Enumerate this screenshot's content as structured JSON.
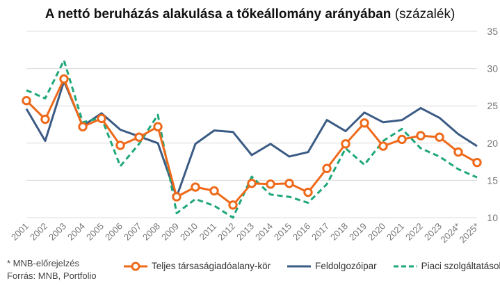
{
  "title": {
    "main": "A nettó beruházás alakulása a tőkeállomány arányában",
    "unit": "(százalék)"
  },
  "footnotes": {
    "forecast_note": "* MNB-előrejelzés",
    "source": "Forrás: MNB, Portfolio"
  },
  "chart_data": {
    "type": "line",
    "title": "A nettó beruházás alakulása a tőkeállomány arányában (százalék)",
    "categories": [
      "2001",
      "2002",
      "2003",
      "2004",
      "2005",
      "2006",
      "2007",
      "2008",
      "2009",
      "2010",
      "2011",
      "2012",
      "2013",
      "2014",
      "2015",
      "2016",
      "2017",
      "2018",
      "2019",
      "2020",
      "2021",
      "2022",
      "2023",
      "2024*",
      "2025*"
    ],
    "y_axis": {
      "position": "right",
      "min": 10,
      "max": 35,
      "ticks": [
        10,
        15,
        20,
        25,
        30,
        35
      ]
    },
    "grid": true,
    "legend_position": "bottom",
    "series": [
      {
        "name": "Teljes társaságiadóalany-kör",
        "color": "#ee6a1a",
        "style": "solid-markers",
        "values": [
          25.7,
          23.2,
          28.6,
          22.2,
          23.3,
          19.7,
          20.8,
          22.2,
          12.8,
          14.1,
          13.6,
          11.7,
          14.6,
          14.5,
          14.6,
          13.4,
          16.6,
          19.9,
          22.7,
          19.6,
          20.5,
          21.0,
          20.8,
          18.8,
          17.4
        ]
      },
      {
        "name": "Feldolgozóipar",
        "color": "#3b5b85",
        "style": "solid",
        "values": [
          24.6,
          20.3,
          28.3,
          22.3,
          24.0,
          21.8,
          20.9,
          20.0,
          12.8,
          19.9,
          21.7,
          21.5,
          18.4,
          19.9,
          18.2,
          18.8,
          23.1,
          21.6,
          24.1,
          22.8,
          23.1,
          24.7,
          23.4,
          21.2,
          19.6
        ]
      },
      {
        "name": "Piaci szolgáltatások",
        "color": "#1ea77a",
        "style": "dashed",
        "values": [
          27.1,
          26.0,
          31.1,
          22.8,
          23.4,
          16.9,
          19.9,
          23.8,
          10.6,
          12.5,
          11.6,
          10.0,
          15.5,
          13.1,
          12.8,
          12.0,
          14.5,
          19.3,
          17.1,
          20.3,
          21.9,
          19.3,
          18.2,
          16.5,
          15.4
        ]
      }
    ]
  }
}
